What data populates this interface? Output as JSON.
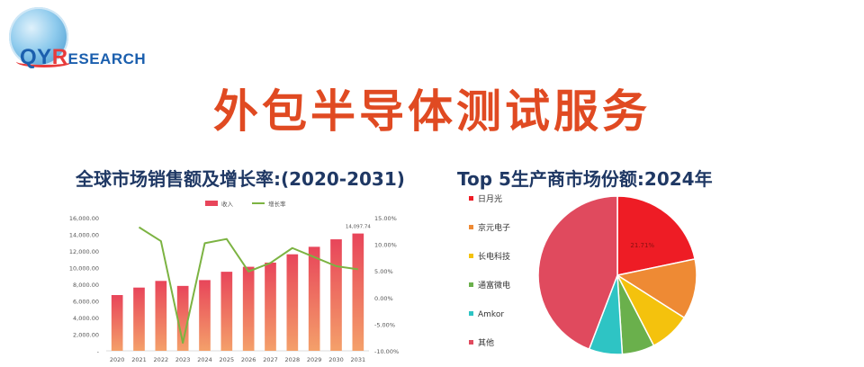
{
  "header": {
    "logo_text": "QYRESEARCH",
    "title": "外包半导体测试服务"
  },
  "colors": {
    "title": "#e04a22",
    "subtitle": "#1f3864",
    "bar_top": "#e8455a",
    "bar_bottom": "#f4a06a",
    "line": "#7cb342"
  },
  "chart_data": [
    {
      "type": "bar",
      "title": "全球市场销售额及增长率:(2020-2031)",
      "legend": {
        "position": "top",
        "bar_label": "收入",
        "line_label": "增长率"
      },
      "categories": [
        "2020",
        "2021",
        "2022",
        "2023",
        "2024",
        "2025",
        "2026",
        "2027",
        "2028",
        "2029",
        "2030",
        "2031"
      ],
      "series": [
        {
          "name": "收入",
          "type": "bar",
          "axis": "left",
          "values": [
            6700,
            7600,
            8400,
            7800,
            8500,
            9500,
            10100,
            10600,
            11600,
            12500,
            13400,
            14097.74
          ]
        },
        {
          "name": "增长率",
          "type": "line",
          "axis": "right",
          "values": [
            null,
            13.2,
            10.6,
            -8.5,
            10.2,
            11.0,
            4.9,
            6.5,
            9.3,
            7.6,
            5.9,
            5.3
          ]
        }
      ],
      "data_labels": [
        {
          "index": 11,
          "text": "14,097.74"
        }
      ],
      "ylim_left": [
        0,
        16000
      ],
      "yticks_left": [
        {
          "v": 0,
          "label": "-"
        },
        {
          "v": 2000,
          "label": "2,000.00"
        },
        {
          "v": 4000,
          "label": "4,000.00"
        },
        {
          "v": 6000,
          "label": "6,000.00"
        },
        {
          "v": 8000,
          "label": "8,000.00"
        },
        {
          "v": 10000,
          "label": "10,000.00"
        },
        {
          "v": 12000,
          "label": "12,000.00"
        },
        {
          "v": 14000,
          "label": "14,000.00"
        },
        {
          "v": 16000,
          "label": "16,000.00"
        }
      ],
      "ylim_right": [
        -10,
        15
      ],
      "yticks_right": [
        {
          "v": -10,
          "label": "-10.00%"
        },
        {
          "v": -5,
          "label": "-5.00%"
        },
        {
          "v": 0,
          "label": "0.00%"
        },
        {
          "v": 5,
          "label": "5.00%"
        },
        {
          "v": 10,
          "label": "10.00%"
        },
        {
          "v": 15,
          "label": "15.00%"
        }
      ],
      "grid": false
    },
    {
      "type": "pie",
      "title": "Top 5生产商市场份额:2024年",
      "legend": {
        "position": "left"
      },
      "slices": [
        {
          "name": "日月光",
          "value": 21.71,
          "color": "#ee1c25",
          "label": "21.71%"
        },
        {
          "name": "京元电子",
          "value": 12.3,
          "color": "#ee8a34",
          "label": ""
        },
        {
          "name": "长电科技",
          "value": 8.4,
          "color": "#f4c20d",
          "label": ""
        },
        {
          "name": "通富微电",
          "value": 6.6,
          "color": "#6ab04c",
          "label": ""
        },
        {
          "name": "Amkor",
          "value": 6.8,
          "color": "#2ec4c4",
          "label": ""
        },
        {
          "name": "其他",
          "value": 44.19,
          "color": "#e04a5e",
          "label": ""
        }
      ]
    }
  ]
}
